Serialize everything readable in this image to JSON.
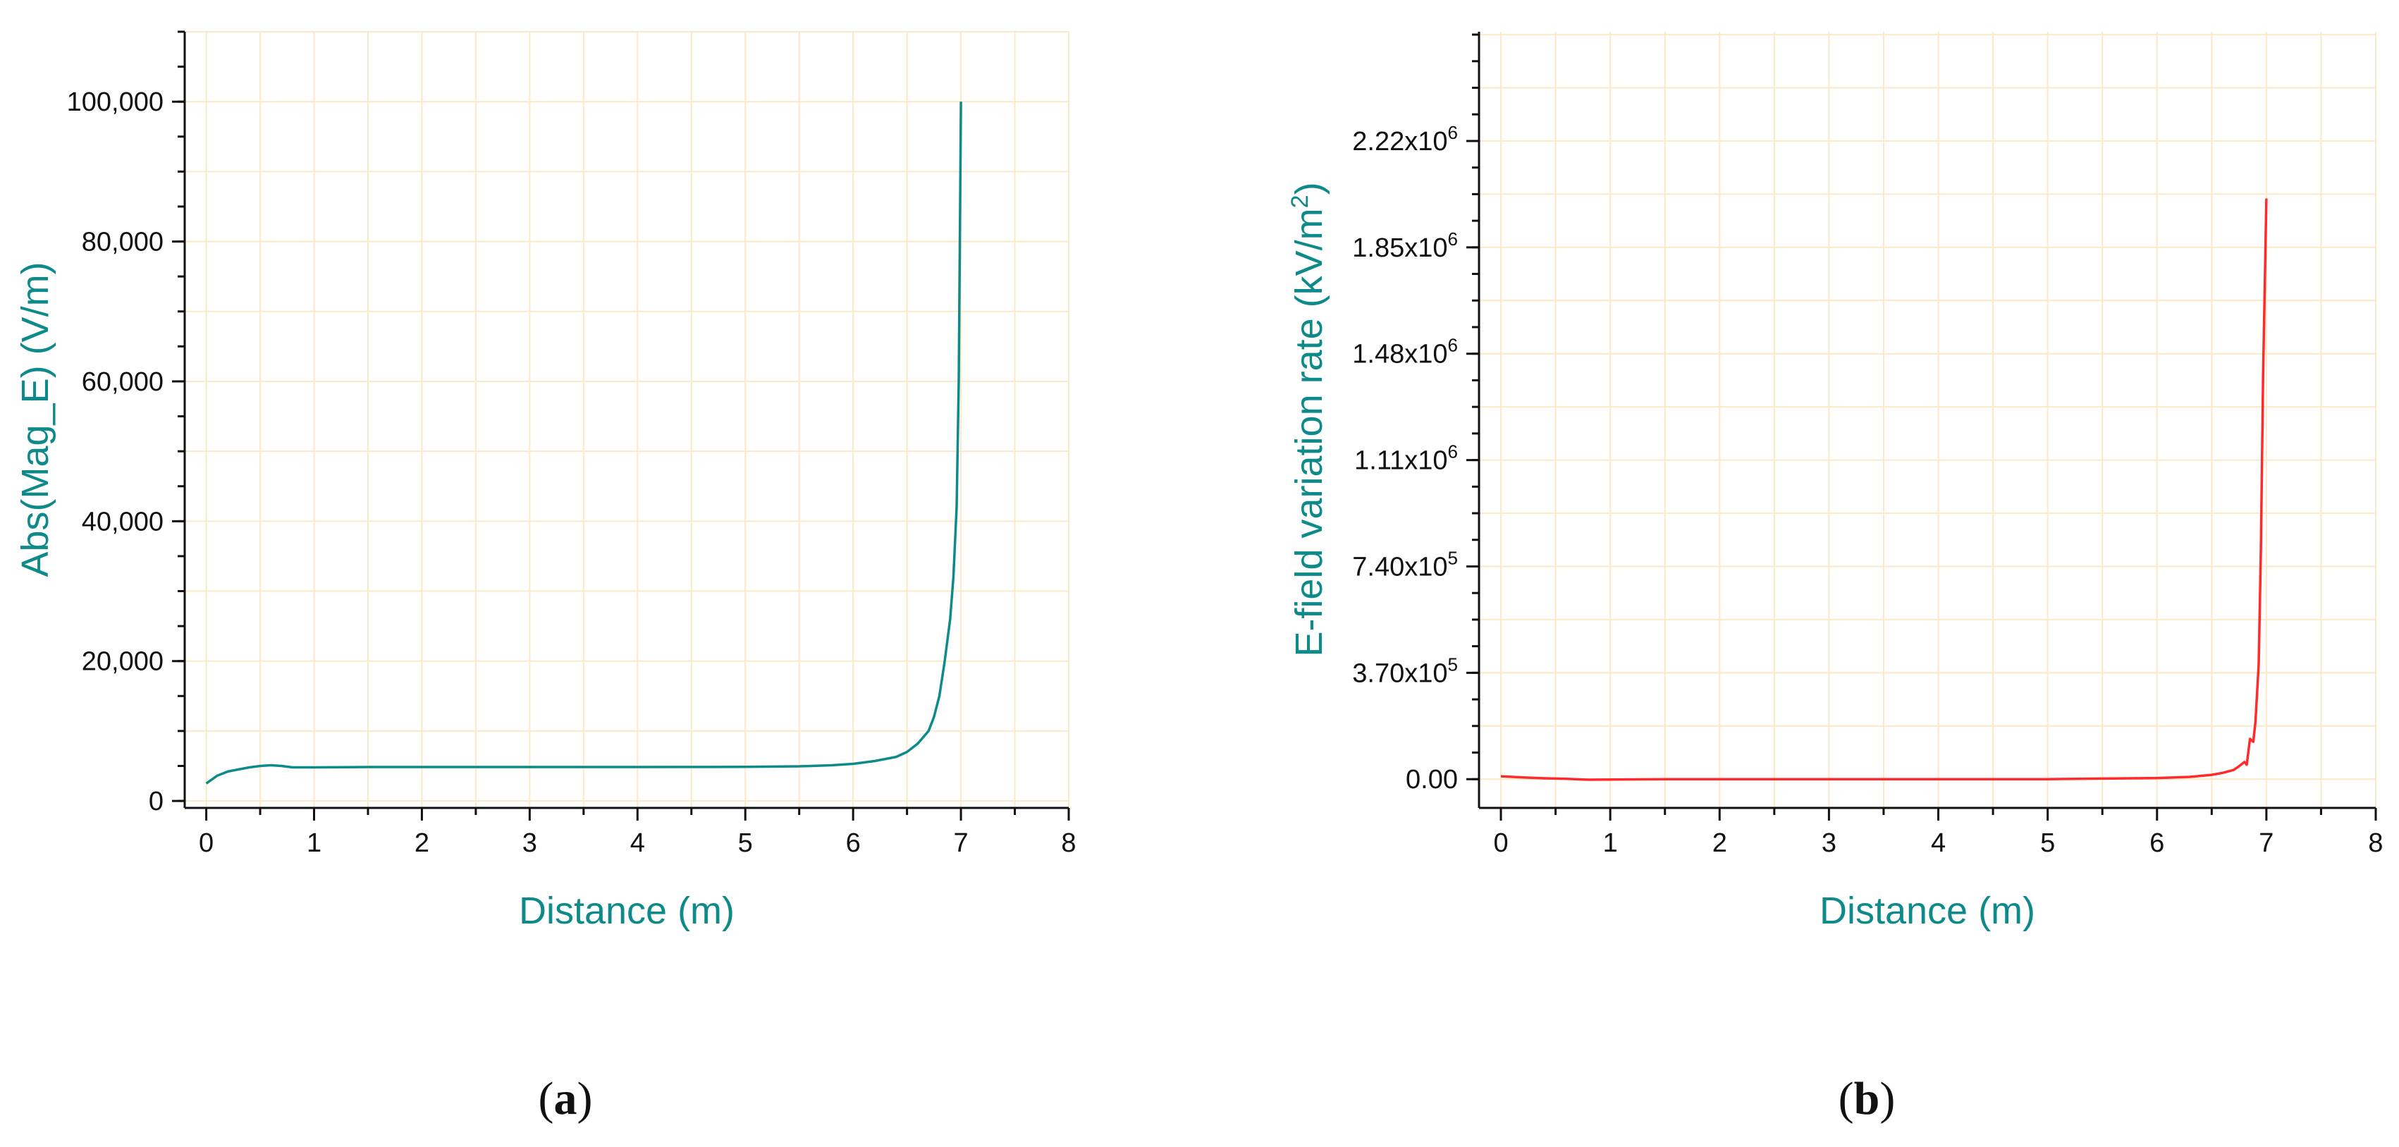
{
  "chart_data": [
    {
      "type": "line",
      "panel_label": "a",
      "title": "",
      "xlabel": "Distance (m)",
      "ylabel": "Abs(Mag_E) (V/m)",
      "xlim": [
        -0.2,
        8
      ],
      "ylim": [
        -1000,
        110000
      ],
      "x_ticks": [
        0,
        1,
        2,
        3,
        4,
        5,
        6,
        7,
        8
      ],
      "x_tick_labels": [
        "0",
        "1",
        "2",
        "3",
        "4",
        "5",
        "6",
        "7",
        "8"
      ],
      "y_ticks": [
        0,
        20000,
        40000,
        60000,
        80000,
        100000
      ],
      "y_tick_labels": [
        "0",
        "20,000",
        "40,000",
        "60,000",
        "80,000",
        "100,000"
      ],
      "grid": true,
      "color": "#0f8a8a",
      "series": [
        {
          "x": [
            0,
            0.1,
            0.2,
            0.3,
            0.4,
            0.5,
            0.6,
            0.7,
            0.8,
            1.0,
            1.5,
            2,
            3,
            4,
            5,
            5.5,
            5.8,
            6.0,
            6.2,
            6.4,
            6.5,
            6.6,
            6.7,
            6.75,
            6.8,
            6.85,
            6.9,
            6.93,
            6.96,
            6.98,
            7.0
          ],
          "y": [
            2500,
            3600,
            4200,
            4500,
            4800,
            5000,
            5100,
            5000,
            4800,
            4800,
            4850,
            4850,
            4850,
            4850,
            4870,
            4950,
            5100,
            5300,
            5700,
            6300,
            7000,
            8200,
            10000,
            12000,
            15000,
            20000,
            26000,
            32000,
            42000,
            60000,
            100000
          ]
        }
      ]
    },
    {
      "type": "line",
      "panel_label": "b",
      "title": "",
      "xlabel": "Distance (m)",
      "ylabel": "E-field variation rate (kV/m",
      "ylabel_sup": "2",
      "ylabel_end": ")",
      "xlim": [
        -0.2,
        8
      ],
      "ylim": [
        -100000,
        2600000
      ],
      "x_ticks": [
        0,
        1,
        2,
        3,
        4,
        5,
        6,
        7,
        8
      ],
      "x_tick_labels": [
        "0",
        "1",
        "2",
        "3",
        "4",
        "5",
        "6",
        "7",
        "8"
      ],
      "y_ticks": [
        0,
        370000,
        740000,
        1110000,
        1480000,
        1850000,
        2220000
      ],
      "y_tick_labels": [
        {
          "base": "0.00",
          "exp": ""
        },
        {
          "base": "3.70x10",
          "exp": "5"
        },
        {
          "base": "7.40x10",
          "exp": "5"
        },
        {
          "base": "1.11x10",
          "exp": "6"
        },
        {
          "base": "1.48x10",
          "exp": "6"
        },
        {
          "base": "1.85x10",
          "exp": "6"
        },
        {
          "base": "2.22x10",
          "exp": "6"
        }
      ],
      "grid": true,
      "color": "#ff2a2a",
      "series": [
        {
          "x": [
            0,
            0.2,
            0.4,
            0.6,
            0.8,
            1.5,
            2,
            3,
            4,
            5,
            5.5,
            6.0,
            6.3,
            6.5,
            6.6,
            6.7,
            6.75,
            6.8,
            6.82,
            6.85,
            6.88,
            6.9,
            6.93,
            6.95,
            6.97,
            7.0
          ],
          "y": [
            10000,
            6000,
            3000,
            1000,
            -2000,
            0,
            0,
            0,
            0,
            0,
            2000,
            4000,
            8000,
            15000,
            22000,
            32000,
            45000,
            60000,
            50000,
            140000,
            130000,
            200000,
            400000,
            800000,
            1400000,
            2020000
          ]
        }
      ]
    }
  ]
}
